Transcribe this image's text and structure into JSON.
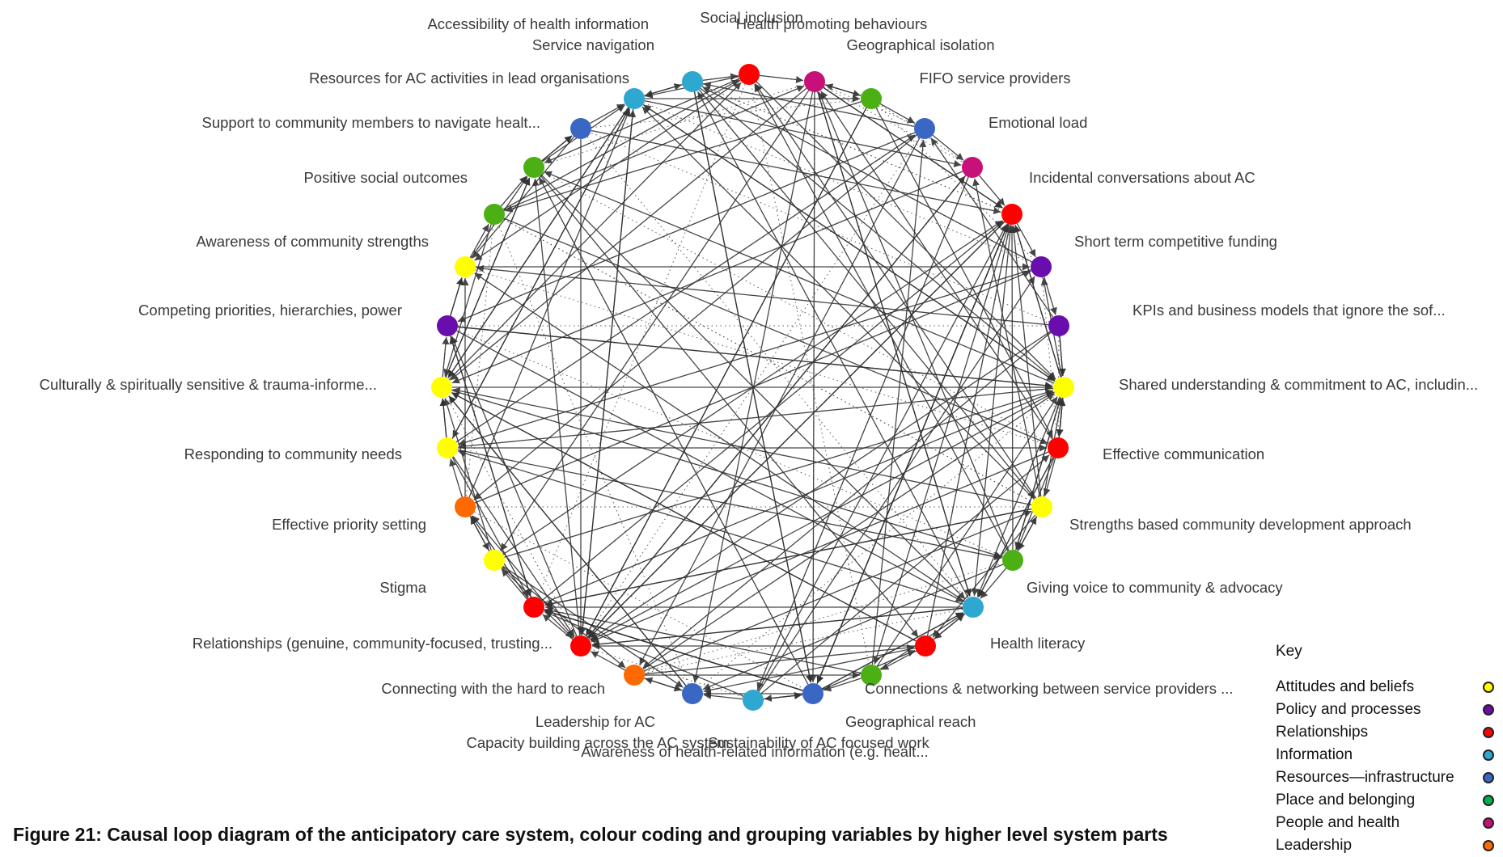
{
  "nodes": [
    {
      "label": "Social inclusion",
      "color": "#ff0000"
    },
    {
      "label": "Health promoting behaviours",
      "color": "#c8107a"
    },
    {
      "label": "Geographical isolation",
      "color": "#4caf14"
    },
    {
      "label": "FIFO service providers",
      "color": "#3b67c4"
    },
    {
      "label": "Emotional load",
      "color": "#c8107a"
    },
    {
      "label": "Incidental conversations about AC",
      "color": "#ff0000"
    },
    {
      "label": "Short term competitive funding",
      "color": "#6a0dad"
    },
    {
      "label": "KPIs and business models that ignore the sof...",
      "color": "#6a0dad"
    },
    {
      "label": "Shared understanding & commitment to AC, includin...",
      "color": "#ffff00"
    },
    {
      "label": "Effective communication",
      "color": "#ff0000"
    },
    {
      "label": "Strengths based community development approach",
      "color": "#ffff00"
    },
    {
      "label": "Giving voice to community & advocacy",
      "color": "#4caf14"
    },
    {
      "label": "Health literacy",
      "color": "#2ea8d0"
    },
    {
      "label": "Connections & networking between service providers ...",
      "color": "#ff0000"
    },
    {
      "label": "Geographical reach",
      "color": "#4caf14"
    },
    {
      "label": "Sustainability of AC focused work",
      "color": "#3b67c4"
    },
    {
      "label": "Awareness of health-related information (e.g. healt...",
      "color": "#2ea8d0"
    },
    {
      "label": "Capacity building across the AC system",
      "color": "#3b67c4"
    },
    {
      "label": "Leadership for AC",
      "color": "#ff6a00"
    },
    {
      "label": "Connecting with the hard to reach",
      "color": "#ff0000"
    },
    {
      "label": "Relationships (genuine, community-focused, trusting...",
      "color": "#ff0000"
    },
    {
      "label": "Stigma",
      "color": "#ffff00"
    },
    {
      "label": "Effective priority setting",
      "color": "#ff6a00"
    },
    {
      "label": "Responding to community needs",
      "color": "#ffff00"
    },
    {
      "label": "Culturally & spiritually sensitive & trauma-informe...",
      "color": "#ffff00"
    },
    {
      "label": "Competing priorities, hierarchies, power",
      "color": "#6a0dad"
    },
    {
      "label": "Awareness of community strengths",
      "color": "#ffff00"
    },
    {
      "label": "Positive social outcomes",
      "color": "#4caf14"
    },
    {
      "label": "Support to community members to navigate healt...",
      "color": "#4caf14"
    },
    {
      "label": "Resources for AC activities in lead organisations",
      "color": "#3b67c4"
    },
    {
      "label": "Service navigation",
      "color": "#2ea8d0"
    },
    {
      "label": "Accessibility of health information",
      "color": "#2ea8d0"
    }
  ],
  "key": {
    "title": "Key",
    "items": [
      {
        "label": "Attitudes and beliefs",
        "color": "#ffff00"
      },
      {
        "label": "Policy and processes",
        "color": "#6a0dad"
      },
      {
        "label": "Relationships",
        "color": "#ff0000"
      },
      {
        "label": "Information",
        "color": "#2ea8d0"
      },
      {
        "label": "Resources—infrastructure",
        "color": "#3b67c4"
      },
      {
        "label": "Place and belonging",
        "color": "#00b050"
      },
      {
        "label": "People and health",
        "color": "#c8107a"
      },
      {
        "label": "Leadership",
        "color": "#ff6a00"
      }
    ]
  },
  "caption": "Figure 21: Causal loop diagram of the anticipatory care system, colour coding and grouping variables by higher level system parts"
}
